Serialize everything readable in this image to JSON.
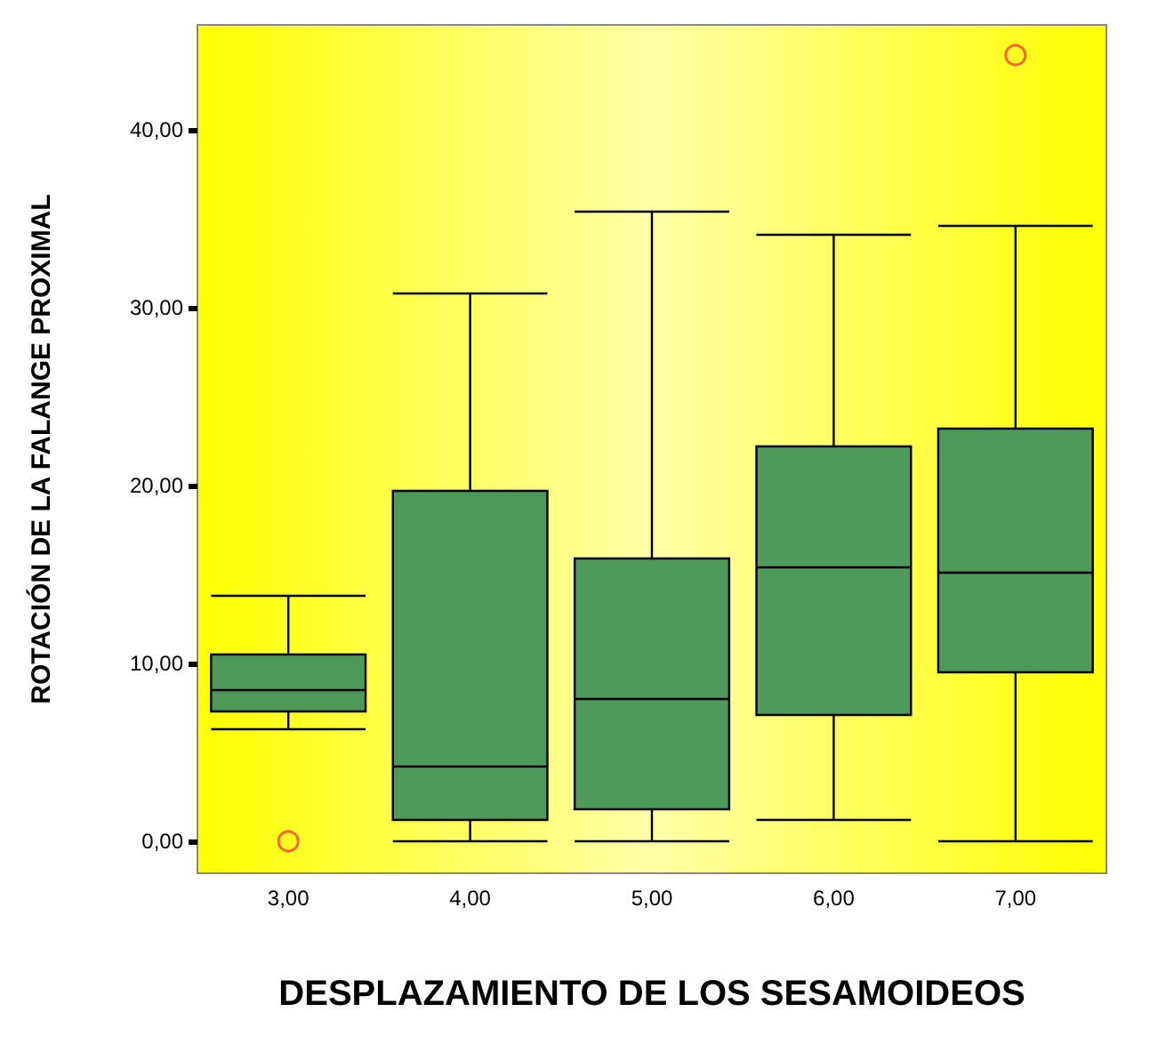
{
  "chart_data": {
    "type": "box",
    "xlabel": "DESPLAZAMIENTO DE LOS SESAMOIDEOS",
    "ylabel": "ROTACIÓN DE LA FALANGE PROXIMAL",
    "categories": [
      "3,00",
      "4,00",
      "5,00",
      "6,00",
      "7,00"
    ],
    "ylim": [
      -1.8,
      45.9
    ],
    "yticks": [
      {
        "value": 0,
        "label": "0,00"
      },
      {
        "value": 10,
        "label": "10,00"
      },
      {
        "value": 20,
        "label": "20,00"
      },
      {
        "value": 30,
        "label": "30,00"
      },
      {
        "value": 40,
        "label": "40,00"
      }
    ],
    "grid": false,
    "series": [
      {
        "color": "#4e9a5a",
        "boxes": [
          {
            "low": 6.3,
            "q1": 7.3,
            "median": 8.5,
            "q3": 10.5,
            "high": 13.8
          },
          {
            "low": 0,
            "q1": 1.2,
            "median": 4.2,
            "q3": 19.7,
            "high": 30.8
          },
          {
            "low": 0,
            "q1": 1.8,
            "median": 8.0,
            "q3": 15.9,
            "high": 35.4
          },
          {
            "low": 1.2,
            "q1": 7.1,
            "median": 15.4,
            "q3": 22.2,
            "high": 34.1
          },
          {
            "low": 0,
            "q1": 9.5,
            "median": 15.1,
            "q3": 23.2,
            "high": 34.6
          }
        ]
      },
      {
        "type": "scatter",
        "color": "#ff3b3b",
        "marker": "circle",
        "x": [
          "3,00",
          "7,00"
        ],
        "values": [
          0,
          44.2
        ]
      }
    ]
  }
}
